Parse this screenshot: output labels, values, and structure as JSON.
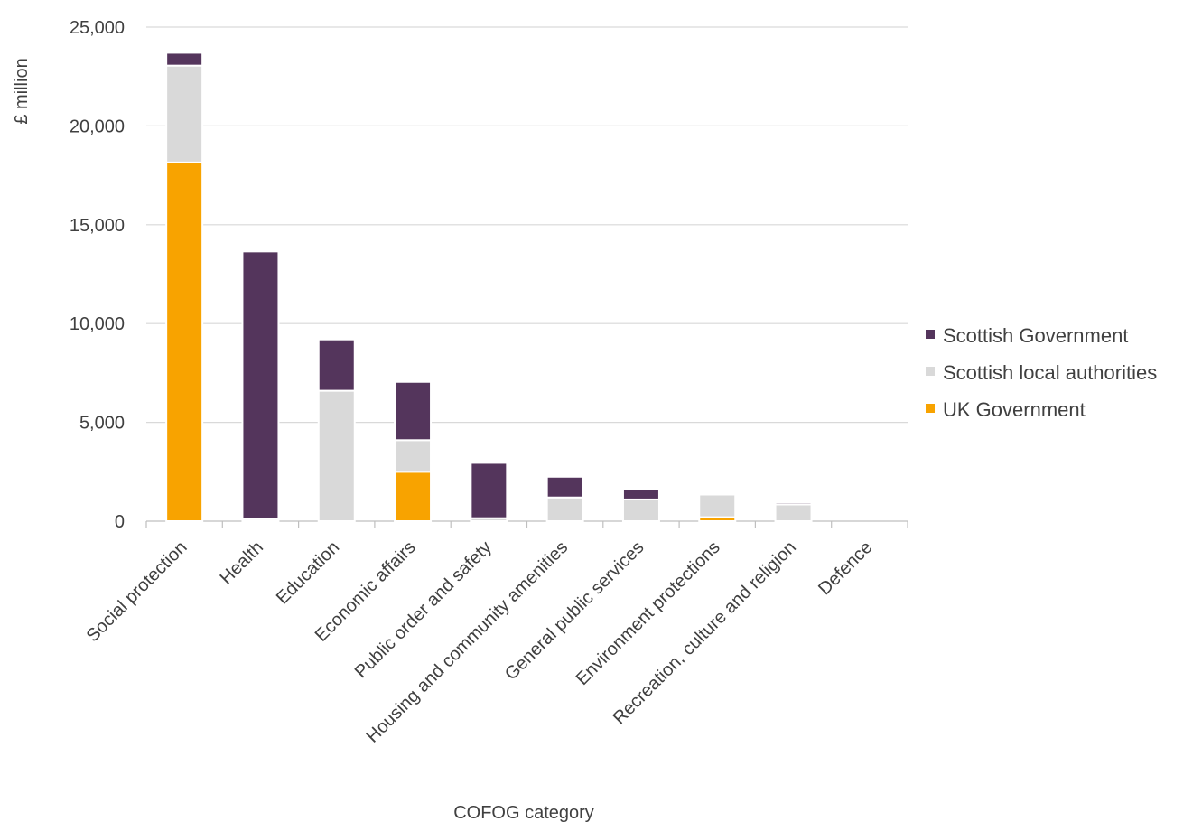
{
  "chart_data": {
    "type": "bar",
    "stacked": true,
    "title": "",
    "xlabel": "COFOG category",
    "ylabel": "£ million",
    "ylim": [
      0,
      25000
    ],
    "yticks": [
      0,
      5000,
      10000,
      15000,
      20000,
      25000
    ],
    "ytick_labels": [
      "0",
      "5,000",
      "10,000",
      "15,000",
      "20,000",
      "25,000"
    ],
    "grid": true,
    "legend_position": "right",
    "categories": [
      "Social protection",
      "Health",
      "Education",
      "Economic affairs",
      "Public order and safety",
      "Housing and community amenities",
      "General public services",
      "Environment protections",
      "Recreation, culture and religion",
      "Defence"
    ],
    "series": [
      {
        "name": "UK Government",
        "color": "#f8a300",
        "values": [
          18150,
          0,
          0,
          2500,
          0,
          0,
          0,
          200,
          0,
          0
        ]
      },
      {
        "name": "Scottish local authorities",
        "color": "#d9d9d9",
        "values": [
          4900,
          100,
          6600,
          1600,
          150,
          1200,
          1100,
          1150,
          850,
          0
        ]
      },
      {
        "name": "Scottish Government",
        "color": "#54355c",
        "values": [
          650,
          13550,
          2600,
          2950,
          2800,
          1050,
          500,
          50,
          100,
          0
        ]
      }
    ],
    "legend_order": [
      "Scottish Government",
      "Scottish local authorities",
      "UK Government"
    ]
  }
}
